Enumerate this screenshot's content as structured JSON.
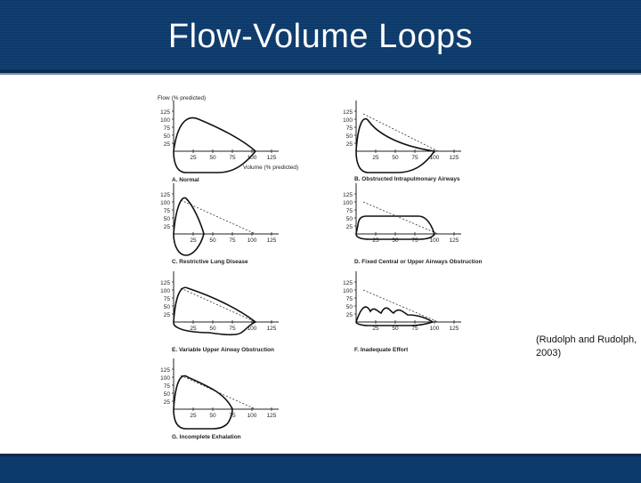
{
  "slide": {
    "title": "Flow-Volume Loops",
    "citation": "(Rudolph and Rudolph, 2003)",
    "colors": {
      "header": "#0c3a6b",
      "footer": "#0c3a6b",
      "title_text": "#ffffff"
    }
  },
  "figure": {
    "y_axis_title": "Flow (% predicted)",
    "x_axis_title": "Volume (% predicted)",
    "y_ticks": [
      "125",
      "100",
      "75",
      "50",
      "25"
    ],
    "x_ticks": [
      "25",
      "50",
      "75",
      "100",
      "125"
    ],
    "panels": [
      {
        "id": "A",
        "caption": "A.  Normal"
      },
      {
        "id": "B",
        "caption": "B.  Obstructed Intrapulmonary Airways"
      },
      {
        "id": "C",
        "caption": "C.  Restrictive Lung Disease"
      },
      {
        "id": "D",
        "caption": "D.  Fixed Central or Upper Airways Obstruction"
      },
      {
        "id": "E",
        "caption": "E.  Variable Upper Airway Obstruction"
      },
      {
        "id": "F",
        "caption": "F.  Inadequate Effort"
      },
      {
        "id": "G",
        "caption": "G.  Incomplete Exhalation"
      }
    ]
  }
}
